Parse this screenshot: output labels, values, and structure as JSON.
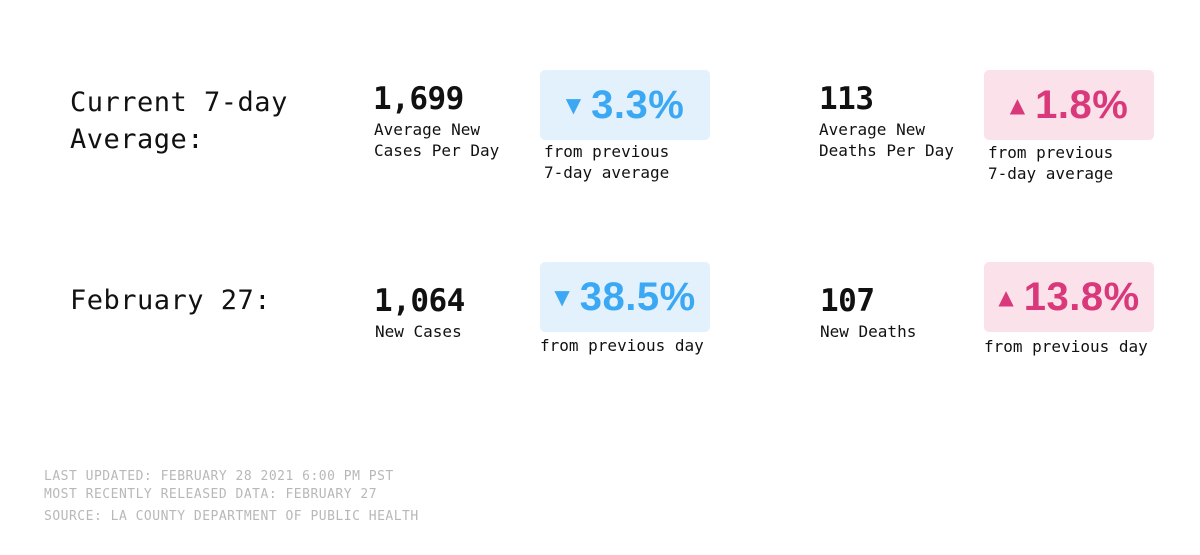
{
  "colors": {
    "decrease_bg": "#e3f1fc",
    "decrease_text": "#3ba8f4",
    "increase_bg": "#fae1ea",
    "increase_text": "#d9397a",
    "footer_text": "#b8b8b8"
  },
  "rows": [
    {
      "label_lines": [
        "Current 7-day",
        "Average:"
      ],
      "cases": {
        "value": "1,699",
        "label_lines": [
          "Average New",
          "Cases Per Day"
        ],
        "change": {
          "direction": "down",
          "arrow_icon": "triangle-down-icon",
          "arrow": "▼",
          "value": "3.3%",
          "caption_lines": [
            "from previous",
            "7-day average"
          ]
        }
      },
      "deaths": {
        "value": "113",
        "label_lines": [
          "Average New",
          "Deaths Per Day"
        ],
        "change": {
          "direction": "up",
          "arrow_icon": "triangle-up-icon",
          "arrow": "▲",
          "value": "1.8%",
          "caption_lines": [
            "from previous",
            "7-day average"
          ]
        }
      }
    },
    {
      "label_lines": [
        "February 27:"
      ],
      "cases": {
        "value": "1,064",
        "label_lines": [
          "New Cases"
        ],
        "change": {
          "direction": "down",
          "arrow_icon": "triangle-down-icon",
          "arrow": "▼",
          "value": "38.5%",
          "caption_lines": [
            "from previous day"
          ]
        }
      },
      "deaths": {
        "value": "107",
        "label_lines": [
          "New Deaths"
        ],
        "change": {
          "direction": "up",
          "arrow_icon": "triangle-up-icon",
          "arrow": "▲",
          "value": "13.8%",
          "caption_lines": [
            "from previous day"
          ]
        }
      }
    }
  ],
  "footer": {
    "last_updated": "LAST UPDATED: FEBRUARY 28 2021 6:00 PM PST",
    "recent_data": "MOST RECENTLY RELEASED DATA: FEBRUARY 27",
    "source": "SOURCE: LA COUNTY DEPARTMENT OF PUBLIC HEALTH"
  }
}
